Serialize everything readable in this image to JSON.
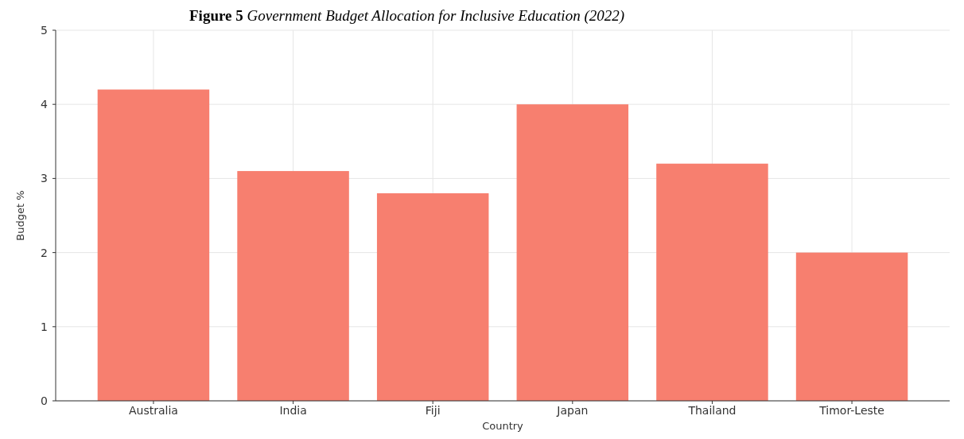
{
  "chart_data": {
    "type": "bar",
    "title": "Figure 5 Government Budget Allocation for Inclusive Education (2022)",
    "xlabel": "Country",
    "ylabel": "Budget %",
    "categories": [
      "Australia",
      "India",
      "Fiji",
      "Japan",
      "Thailand",
      "Timor-Leste"
    ],
    "values": [
      4.2,
      3.1,
      2.8,
      4.0,
      3.2,
      2.0
    ],
    "color": "#f77f6f",
    "ylim": [
      0,
      5
    ],
    "yticks": [
      0,
      1,
      2,
      3,
      4,
      5
    ],
    "grid": true
  }
}
